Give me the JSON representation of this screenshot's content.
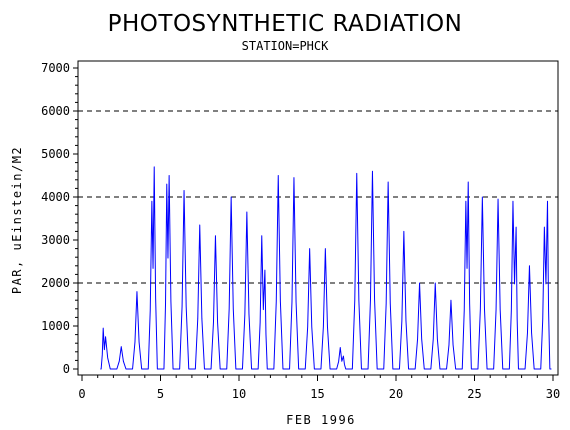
{
  "chart_data": {
    "type": "line",
    "title": "PHOTOSYNTHETIC RADIATION",
    "subtitle": "STATION=PHCK",
    "xlabel": "FEB 1996",
    "ylabel": "PAR, uEinstein/M2",
    "xlim": [
      0,
      30
    ],
    "ylim": [
      0,
      7000
    ],
    "x_ticks": [
      0,
      5,
      10,
      15,
      20,
      25,
      30
    ],
    "y_ticks": [
      0,
      1000,
      2000,
      3000,
      4000,
      5000,
      6000,
      7000
    ],
    "reference_lines": [
      2000,
      4000,
      6000
    ],
    "grid": false,
    "line_color": "#0000ff",
    "series": [
      {
        "daily_peaks": [
          {
            "day": 1,
            "peaks": [
              [
                1.35,
                950
              ],
              [
                1.5,
                750
              ]
            ]
          },
          {
            "day": 2,
            "peaks": [
              [
                2.5,
                520
              ]
            ]
          },
          {
            "day": 3,
            "peaks": [
              [
                3.5,
                1800
              ]
            ]
          },
          {
            "day": 4,
            "peaks": [
              [
                4.45,
                3900
              ],
              [
                4.6,
                4700
              ]
            ]
          },
          {
            "day": 5,
            "peaks": [
              [
                5.4,
                4300
              ],
              [
                5.55,
                4500
              ]
            ]
          },
          {
            "day": 6,
            "peaks": [
              [
                6.5,
                4150
              ]
            ]
          },
          {
            "day": 7,
            "peaks": [
              [
                7.5,
                3350
              ]
            ]
          },
          {
            "day": 8,
            "peaks": [
              [
                8.5,
                3100
              ]
            ]
          },
          {
            "day": 9,
            "peaks": [
              [
                9.5,
                4000
              ]
            ]
          },
          {
            "day": 10,
            "peaks": [
              [
                10.5,
                3650
              ]
            ]
          },
          {
            "day": 11,
            "peaks": [
              [
                11.45,
                3100
              ],
              [
                11.65,
                2300
              ]
            ]
          },
          {
            "day": 12,
            "peaks": [
              [
                12.5,
                4500
              ]
            ]
          },
          {
            "day": 13,
            "peaks": [
              [
                13.5,
                4450
              ]
            ]
          },
          {
            "day": 14,
            "peaks": [
              [
                14.5,
                2800
              ]
            ]
          },
          {
            "day": 15,
            "peaks": [
              [
                15.5,
                2800
              ]
            ]
          },
          {
            "day": 16,
            "peaks": [
              [
                16.45,
                500
              ],
              [
                16.65,
                300
              ]
            ]
          },
          {
            "day": 17,
            "peaks": [
              [
                17.5,
                4550
              ]
            ]
          },
          {
            "day": 18,
            "peaks": [
              [
                18.5,
                4600
              ]
            ]
          },
          {
            "day": 19,
            "peaks": [
              [
                19.5,
                4350
              ]
            ]
          },
          {
            "day": 20,
            "peaks": [
              [
                20.5,
                3200
              ]
            ]
          },
          {
            "day": 21,
            "peaks": [
              [
                21.5,
                2000
              ]
            ]
          },
          {
            "day": 22,
            "peaks": [
              [
                22.5,
                2000
              ]
            ]
          },
          {
            "day": 23,
            "peaks": [
              [
                23.5,
                1600
              ]
            ]
          },
          {
            "day": 24,
            "peaks": [
              [
                24.45,
                3900
              ],
              [
                24.6,
                4350
              ]
            ]
          },
          {
            "day": 25,
            "peaks": [
              [
                25.5,
                4000
              ]
            ]
          },
          {
            "day": 26,
            "peaks": [
              [
                26.5,
                3950
              ]
            ]
          },
          {
            "day": 27,
            "peaks": [
              [
                27.45,
                3900
              ],
              [
                27.65,
                3300
              ]
            ]
          },
          {
            "day": 28,
            "peaks": [
              [
                28.5,
                2400
              ]
            ]
          },
          {
            "day": 29,
            "peaks": [
              [
                29.45,
                3300
              ],
              [
                29.65,
                3900
              ]
            ]
          }
        ]
      }
    ]
  }
}
